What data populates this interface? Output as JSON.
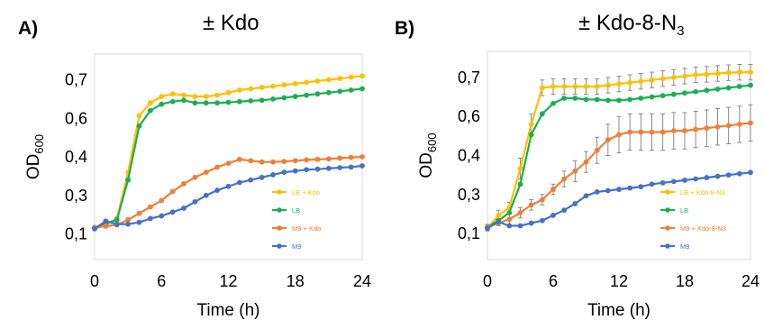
{
  "chart_data": [
    {
      "type": "line",
      "panel_label": "A)",
      "title": "± Kdo",
      "xlabel": "Time (h)",
      "ylabel": "OD600",
      "ylabel_parts": {
        "base": "OD",
        "sub": "600"
      },
      "xlim": [
        0,
        24
      ],
      "ylim": [
        0.0,
        0.8
      ],
      "x_ticks": [
        "0",
        "6",
        "12",
        "18",
        "24"
      ],
      "y_ticks": [
        "0,1",
        "0,3",
        "0,4",
        "0,6",
        "0,7"
      ],
      "y_tick_values": [
        0.1,
        0.25,
        0.4,
        0.55,
        0.7
      ],
      "grid": false,
      "legend_position": "bottom-right",
      "x": [
        0,
        1,
        2,
        3,
        4,
        5,
        6,
        7,
        8,
        9,
        10,
        11,
        12,
        13,
        14,
        15,
        16,
        17,
        18,
        19,
        20,
        21,
        22,
        23,
        24
      ],
      "series": [
        {
          "name": "LB + Kdo",
          "color": "#FFC000",
          "values": [
            0.12,
            0.135,
            0.16,
            0.34,
            0.56,
            0.61,
            0.635,
            0.645,
            0.64,
            0.635,
            0.635,
            0.64,
            0.65,
            0.66,
            0.665,
            0.67,
            0.675,
            0.68,
            0.685,
            0.69,
            0.695,
            0.7,
            0.705,
            0.71,
            0.715
          ]
        },
        {
          "name": "LB",
          "color": "#1AAF54",
          "values": [
            0.125,
            0.14,
            0.155,
            0.31,
            0.52,
            0.58,
            0.605,
            0.615,
            0.62,
            0.61,
            0.61,
            0.61,
            0.612,
            0.615,
            0.618,
            0.62,
            0.625,
            0.63,
            0.635,
            0.64,
            0.645,
            0.65,
            0.655,
            0.66,
            0.665
          ]
        },
        {
          "name": "M9 + Kdo",
          "color": "#F07F36",
          "values": [
            0.125,
            0.13,
            0.135,
            0.155,
            0.18,
            0.205,
            0.23,
            0.265,
            0.295,
            0.32,
            0.34,
            0.36,
            0.375,
            0.39,
            0.385,
            0.38,
            0.38,
            0.382,
            0.385,
            0.388,
            0.39,
            0.392,
            0.395,
            0.398,
            0.4
          ]
        },
        {
          "name": "M9",
          "color": "#4472C4",
          "values": [
            0.12,
            0.15,
            0.138,
            0.138,
            0.145,
            0.16,
            0.17,
            0.185,
            0.2,
            0.225,
            0.25,
            0.27,
            0.285,
            0.3,
            0.31,
            0.32,
            0.33,
            0.34,
            0.345,
            0.35,
            0.352,
            0.355,
            0.358,
            0.36,
            0.365
          ]
        }
      ]
    },
    {
      "type": "line",
      "panel_label": "B)",
      "title": "± Kdo-8-N3",
      "title_parts": {
        "base": "± Kdo-8-N",
        "sub": "3"
      },
      "xlabel": "Time (h)",
      "ylabel": "OD600",
      "ylabel_parts": {
        "base": "OD",
        "sub": "600"
      },
      "xlim": [
        0,
        24
      ],
      "ylim": [
        0.0,
        0.8
      ],
      "x_ticks": [
        "0",
        "6",
        "12",
        "18",
        "24"
      ],
      "y_ticks": [
        "0,1",
        "0,3",
        "0,4",
        "0,6",
        "0,7"
      ],
      "y_tick_values": [
        0.1,
        0.25,
        0.4,
        0.55,
        0.7
      ],
      "grid": false,
      "legend_position": "bottom-right",
      "x": [
        0,
        1,
        2,
        3,
        4,
        5,
        6,
        7,
        8,
        9,
        10,
        11,
        12,
        13,
        14,
        15,
        16,
        17,
        18,
        19,
        20,
        21,
        22,
        23,
        24
      ],
      "series": [
        {
          "name": "LB + Kdo-8-N3",
          "color": "#FFC000",
          "error_bars": true,
          "values": [
            0.12,
            0.17,
            0.2,
            0.35,
            0.52,
            0.66,
            0.665,
            0.665,
            0.665,
            0.665,
            0.665,
            0.67,
            0.675,
            0.68,
            0.685,
            0.69,
            0.695,
            0.7,
            0.705,
            0.71,
            0.712,
            0.715,
            0.718,
            0.72,
            0.72
          ],
          "errors": [
            0.01,
            0.02,
            0.02,
            0.04,
            0.04,
            0.03,
            0.03,
            0.03,
            0.03,
            0.03,
            0.03,
            0.03,
            0.03,
            0.03,
            0.03,
            0.03,
            0.03,
            0.03,
            0.03,
            0.03,
            0.03,
            0.03,
            0.03,
            0.03,
            0.03
          ]
        },
        {
          "name": "LB",
          "color": "#1AAF54",
          "values": [
            0.125,
            0.15,
            0.18,
            0.29,
            0.48,
            0.56,
            0.6,
            0.62,
            0.62,
            0.615,
            0.615,
            0.612,
            0.612,
            0.615,
            0.62,
            0.625,
            0.63,
            0.635,
            0.64,
            0.645,
            0.65,
            0.655,
            0.66,
            0.665,
            0.67
          ]
        },
        {
          "name": "M9 + Kdo-8-N3",
          "color": "#F07F36",
          "error_bars": true,
          "values": [
            0.125,
            0.14,
            0.155,
            0.18,
            0.21,
            0.23,
            0.27,
            0.31,
            0.34,
            0.375,
            0.42,
            0.46,
            0.48,
            0.49,
            0.49,
            0.49,
            0.49,
            0.495,
            0.495,
            0.5,
            0.505,
            0.51,
            0.515,
            0.52,
            0.525
          ],
          "errors": [
            0.01,
            0.01,
            0.02,
            0.02,
            0.02,
            0.02,
            0.02,
            0.03,
            0.04,
            0.04,
            0.05,
            0.06,
            0.07,
            0.07,
            0.07,
            0.07,
            0.07,
            0.07,
            0.07,
            0.07,
            0.07,
            0.07,
            0.07,
            0.07,
            0.07
          ]
        },
        {
          "name": "M9",
          "color": "#4472C4",
          "values": [
            0.12,
            0.145,
            0.13,
            0.13,
            0.14,
            0.15,
            0.17,
            0.19,
            0.215,
            0.245,
            0.26,
            0.265,
            0.27,
            0.275,
            0.28,
            0.29,
            0.295,
            0.3,
            0.305,
            0.31,
            0.315,
            0.32,
            0.325,
            0.33,
            0.335
          ]
        }
      ]
    }
  ]
}
